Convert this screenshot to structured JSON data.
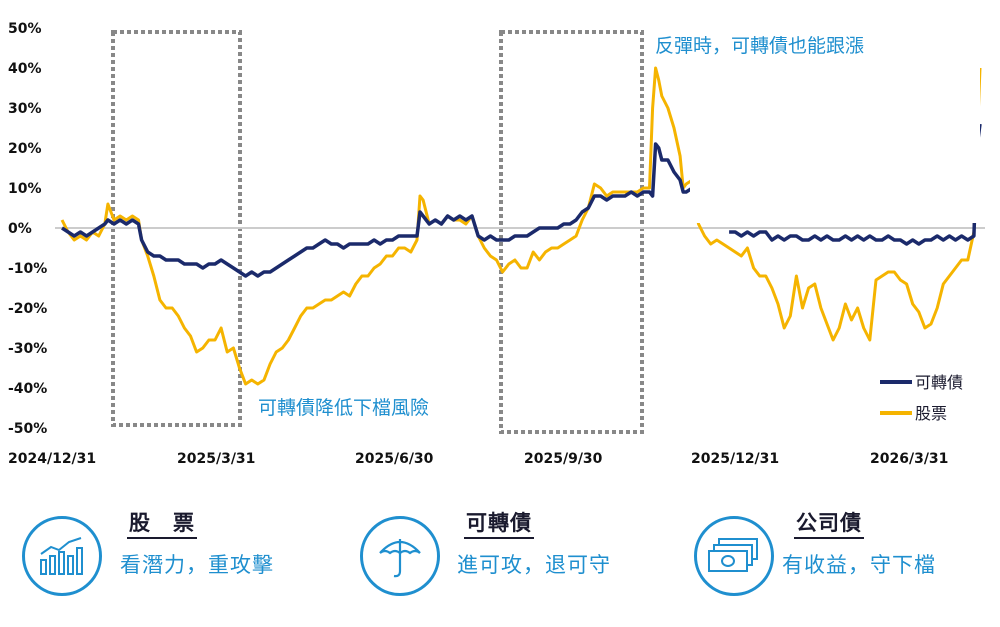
{
  "chart_data": {
    "type": "line",
    "x_ticks": [
      "2024/12/31",
      "2025/3/31",
      "2025/6/30",
      "2025/9/30",
      "2025/12/31",
      "2026/3/31"
    ],
    "y_ticks": [
      "50%",
      "40%",
      "30%",
      "20%",
      "10%",
      "0%",
      "-10%",
      "-20%",
      "-30%",
      "-40%",
      "-50%"
    ],
    "ylim": [
      -50,
      50
    ],
    "annotations": [
      "可轉債降低下檔風險",
      "反彈時，可轉債也能跟漲"
    ],
    "series": [
      {
        "name": "可轉債",
        "color": "#1b2a6b",
        "points": [
          [
            0,
            0
          ],
          [
            2,
            -1
          ],
          [
            4,
            -2
          ],
          [
            6,
            -1
          ],
          [
            8,
            -2
          ],
          [
            10,
            -1
          ],
          [
            12,
            0
          ],
          [
            14,
            1
          ],
          [
            15,
            2
          ],
          [
            17,
            1
          ],
          [
            19,
            2
          ],
          [
            21,
            1
          ],
          [
            23,
            2
          ],
          [
            25,
            1
          ],
          [
            26,
            -3
          ],
          [
            28,
            -6
          ],
          [
            30,
            -7
          ],
          [
            32,
            -7
          ],
          [
            34,
            -8
          ],
          [
            36,
            -8
          ],
          [
            38,
            -8
          ],
          [
            40,
            -9
          ],
          [
            42,
            -9
          ],
          [
            44,
            -9
          ],
          [
            46,
            -10
          ],
          [
            48,
            -9
          ],
          [
            50,
            -9
          ],
          [
            52,
            -8
          ],
          [
            54,
            -9
          ],
          [
            56,
            -10
          ],
          [
            58,
            -11
          ],
          [
            60,
            -12
          ],
          [
            62,
            -11
          ],
          [
            64,
            -12
          ],
          [
            66,
            -11
          ],
          [
            68,
            -11
          ],
          [
            70,
            -10
          ],
          [
            72,
            -9
          ],
          [
            74,
            -8
          ],
          [
            76,
            -7
          ],
          [
            78,
            -6
          ],
          [
            80,
            -5
          ],
          [
            82,
            -5
          ],
          [
            84,
            -4
          ],
          [
            86,
            -3
          ],
          [
            88,
            -4
          ],
          [
            90,
            -4
          ],
          [
            92,
            -5
          ],
          [
            94,
            -4
          ],
          [
            96,
            -4
          ],
          [
            98,
            -4
          ],
          [
            100,
            -4
          ],
          [
            102,
            -3
          ],
          [
            104,
            -4
          ],
          [
            106,
            -3
          ],
          [
            108,
            -3
          ],
          [
            110,
            -2
          ],
          [
            112,
            -2
          ],
          [
            114,
            -2
          ],
          [
            116,
            -2
          ],
          [
            117,
            4
          ],
          [
            118,
            3
          ],
          [
            120,
            1
          ],
          [
            122,
            2
          ],
          [
            124,
            1
          ],
          [
            126,
            3
          ],
          [
            128,
            2
          ],
          [
            130,
            3
          ],
          [
            132,
            2
          ],
          [
            134,
            3
          ],
          [
            136,
            -2
          ],
          [
            138,
            -3
          ],
          [
            140,
            -2
          ],
          [
            142,
            -3
          ],
          [
            144,
            -3
          ],
          [
            146,
            -3
          ],
          [
            148,
            -2
          ],
          [
            150,
            -2
          ],
          [
            152,
            -2
          ],
          [
            154,
            -1
          ],
          [
            156,
            0
          ],
          [
            158,
            0
          ],
          [
            160,
            0
          ],
          [
            162,
            0
          ],
          [
            164,
            1
          ],
          [
            166,
            1
          ],
          [
            168,
            2
          ],
          [
            170,
            4
          ],
          [
            172,
            5
          ],
          [
            174,
            8
          ],
          [
            176,
            8
          ],
          [
            178,
            7
          ],
          [
            180,
            8
          ],
          [
            182,
            8
          ],
          [
            184,
            8
          ],
          [
            186,
            9
          ],
          [
            188,
            8
          ],
          [
            190,
            9
          ],
          [
            192,
            9
          ],
          [
            193,
            8
          ],
          [
            194,
            21
          ],
          [
            195,
            20
          ],
          [
            196,
            17
          ],
          [
            198,
            17
          ],
          [
            200,
            14
          ],
          [
            202,
            12
          ],
          [
            203,
            9
          ],
          [
            204,
            9
          ],
          [
            206,
            10
          ],
          [
            208,
            10
          ],
          [
            218,
            -1
          ],
          [
            220,
            -1
          ],
          [
            222,
            -2
          ],
          [
            224,
            -1
          ],
          [
            226,
            -2
          ],
          [
            228,
            -1
          ],
          [
            230,
            -1
          ],
          [
            232,
            -3
          ],
          [
            234,
            -2
          ],
          [
            236,
            -3
          ],
          [
            238,
            -2
          ],
          [
            240,
            -2
          ],
          [
            242,
            -3
          ],
          [
            244,
            -3
          ],
          [
            246,
            -2
          ],
          [
            248,
            -3
          ],
          [
            250,
            -2
          ],
          [
            252,
            -3
          ],
          [
            254,
            -3
          ],
          [
            256,
            -2
          ],
          [
            258,
            -3
          ],
          [
            260,
            -2
          ],
          [
            262,
            -3
          ],
          [
            264,
            -2
          ],
          [
            266,
            -3
          ],
          [
            268,
            -3
          ],
          [
            270,
            -2
          ],
          [
            272,
            -3
          ],
          [
            274,
            -3
          ],
          [
            276,
            -4
          ],
          [
            278,
            -3
          ],
          [
            280,
            -4
          ],
          [
            282,
            -3
          ],
          [
            284,
            -3
          ],
          [
            286,
            -2
          ],
          [
            288,
            -3
          ],
          [
            290,
            -2
          ],
          [
            292,
            -3
          ],
          [
            294,
            -2
          ],
          [
            296,
            -3
          ],
          [
            298,
            -2
          ],
          [
            299,
            20
          ],
          [
            300,
            26
          ]
        ]
      },
      {
        "name": "股票",
        "color": "#f5b400",
        "points": [
          [
            0,
            2
          ],
          [
            2,
            -1
          ],
          [
            4,
            -3
          ],
          [
            6,
            -2
          ],
          [
            8,
            -3
          ],
          [
            10,
            -1
          ],
          [
            12,
            -2
          ],
          [
            14,
            1
          ],
          [
            15,
            6
          ],
          [
            17,
            2
          ],
          [
            19,
            3
          ],
          [
            21,
            2
          ],
          [
            23,
            3
          ],
          [
            25,
            2
          ],
          [
            26,
            -3
          ],
          [
            28,
            -7
          ],
          [
            30,
            -12
          ],
          [
            32,
            -18
          ],
          [
            34,
            -20
          ],
          [
            36,
            -20
          ],
          [
            38,
            -22
          ],
          [
            40,
            -25
          ],
          [
            42,
            -27
          ],
          [
            44,
            -31
          ],
          [
            46,
            -30
          ],
          [
            48,
            -28
          ],
          [
            50,
            -28
          ],
          [
            52,
            -25
          ],
          [
            54,
            -31
          ],
          [
            56,
            -30
          ],
          [
            58,
            -35
          ],
          [
            60,
            -39
          ],
          [
            62,
            -38
          ],
          [
            64,
            -39
          ],
          [
            66,
            -38
          ],
          [
            68,
            -34
          ],
          [
            70,
            -31
          ],
          [
            72,
            -30
          ],
          [
            74,
            -28
          ],
          [
            76,
            -25
          ],
          [
            78,
            -22
          ],
          [
            80,
            -20
          ],
          [
            82,
            -20
          ],
          [
            84,
            -19
          ],
          [
            86,
            -18
          ],
          [
            88,
            -18
          ],
          [
            90,
            -17
          ],
          [
            92,
            -16
          ],
          [
            94,
            -17
          ],
          [
            96,
            -14
          ],
          [
            98,
            -12
          ],
          [
            100,
            -12
          ],
          [
            102,
            -10
          ],
          [
            104,
            -9
          ],
          [
            106,
            -7
          ],
          [
            108,
            -7
          ],
          [
            110,
            -5
          ],
          [
            112,
            -5
          ],
          [
            114,
            -6
          ],
          [
            116,
            -3
          ],
          [
            117,
            8
          ],
          [
            118,
            7
          ],
          [
            120,
            1
          ],
          [
            122,
            2
          ],
          [
            124,
            1
          ],
          [
            126,
            3
          ],
          [
            128,
            2
          ],
          [
            130,
            2
          ],
          [
            132,
            1
          ],
          [
            134,
            3
          ],
          [
            136,
            -2
          ],
          [
            138,
            -5
          ],
          [
            140,
            -7
          ],
          [
            142,
            -8
          ],
          [
            144,
            -11
          ],
          [
            146,
            -9
          ],
          [
            148,
            -8
          ],
          [
            150,
            -10
          ],
          [
            152,
            -10
          ],
          [
            154,
            -6
          ],
          [
            156,
            -8
          ],
          [
            158,
            -6
          ],
          [
            160,
            -5
          ],
          [
            162,
            -5
          ],
          [
            164,
            -4
          ],
          [
            166,
            -3
          ],
          [
            168,
            -2
          ],
          [
            170,
            2
          ],
          [
            172,
            5
          ],
          [
            174,
            11
          ],
          [
            176,
            10
          ],
          [
            178,
            8
          ],
          [
            180,
            9
          ],
          [
            182,
            9
          ],
          [
            184,
            9
          ],
          [
            186,
            9
          ],
          [
            188,
            9
          ],
          [
            190,
            10
          ],
          [
            192,
            10
          ],
          [
            193,
            30
          ],
          [
            194,
            40
          ],
          [
            195,
            37
          ],
          [
            196,
            33
          ],
          [
            198,
            30
          ],
          [
            200,
            25
          ],
          [
            202,
            18
          ],
          [
            203,
            10
          ],
          [
            204,
            11
          ],
          [
            206,
            12
          ],
          [
            208,
            1
          ],
          [
            210,
            -2
          ],
          [
            212,
            -4
          ],
          [
            214,
            -3
          ],
          [
            216,
            -4
          ],
          [
            218,
            -5
          ],
          [
            220,
            -6
          ],
          [
            222,
            -7
          ],
          [
            224,
            -5
          ],
          [
            226,
            -10
          ],
          [
            228,
            -12
          ],
          [
            230,
            -12
          ],
          [
            232,
            -15
          ],
          [
            234,
            -19
          ],
          [
            236,
            -25
          ],
          [
            238,
            -22
          ],
          [
            240,
            -12
          ],
          [
            242,
            -20
          ],
          [
            244,
            -15
          ],
          [
            246,
            -14
          ],
          [
            248,
            -20
          ],
          [
            250,
            -24
          ],
          [
            252,
            -28
          ],
          [
            254,
            -25
          ],
          [
            256,
            -19
          ],
          [
            258,
            -23
          ],
          [
            260,
            -20
          ],
          [
            262,
            -25
          ],
          [
            264,
            -28
          ],
          [
            266,
            -13
          ],
          [
            268,
            -12
          ],
          [
            270,
            -11
          ],
          [
            272,
            -11
          ],
          [
            274,
            -13
          ],
          [
            276,
            -14
          ],
          [
            278,
            -19
          ],
          [
            280,
            -21
          ],
          [
            282,
            -25
          ],
          [
            284,
            -24
          ],
          [
            286,
            -20
          ],
          [
            288,
            -14
          ],
          [
            290,
            -12
          ],
          [
            292,
            -10
          ],
          [
            294,
            -8
          ],
          [
            296,
            -8
          ],
          [
            298,
            -1
          ],
          [
            299,
            20
          ],
          [
            300,
            40
          ]
        ]
      }
    ],
    "highlight_boxes": [
      [
        14,
        65
      ],
      [
        175,
        220
      ]
    ]
  },
  "cards": [
    {
      "title": "股　票",
      "subtitle": "看潛力，重攻擊",
      "icon": "bar-chart-icon"
    },
    {
      "title": "可轉債",
      "subtitle": "進可攻，退可守",
      "icon": "umbrella-icon"
    },
    {
      "title": "公司債",
      "subtitle": "有收益，守下檔",
      "icon": "cash-icon"
    }
  ]
}
